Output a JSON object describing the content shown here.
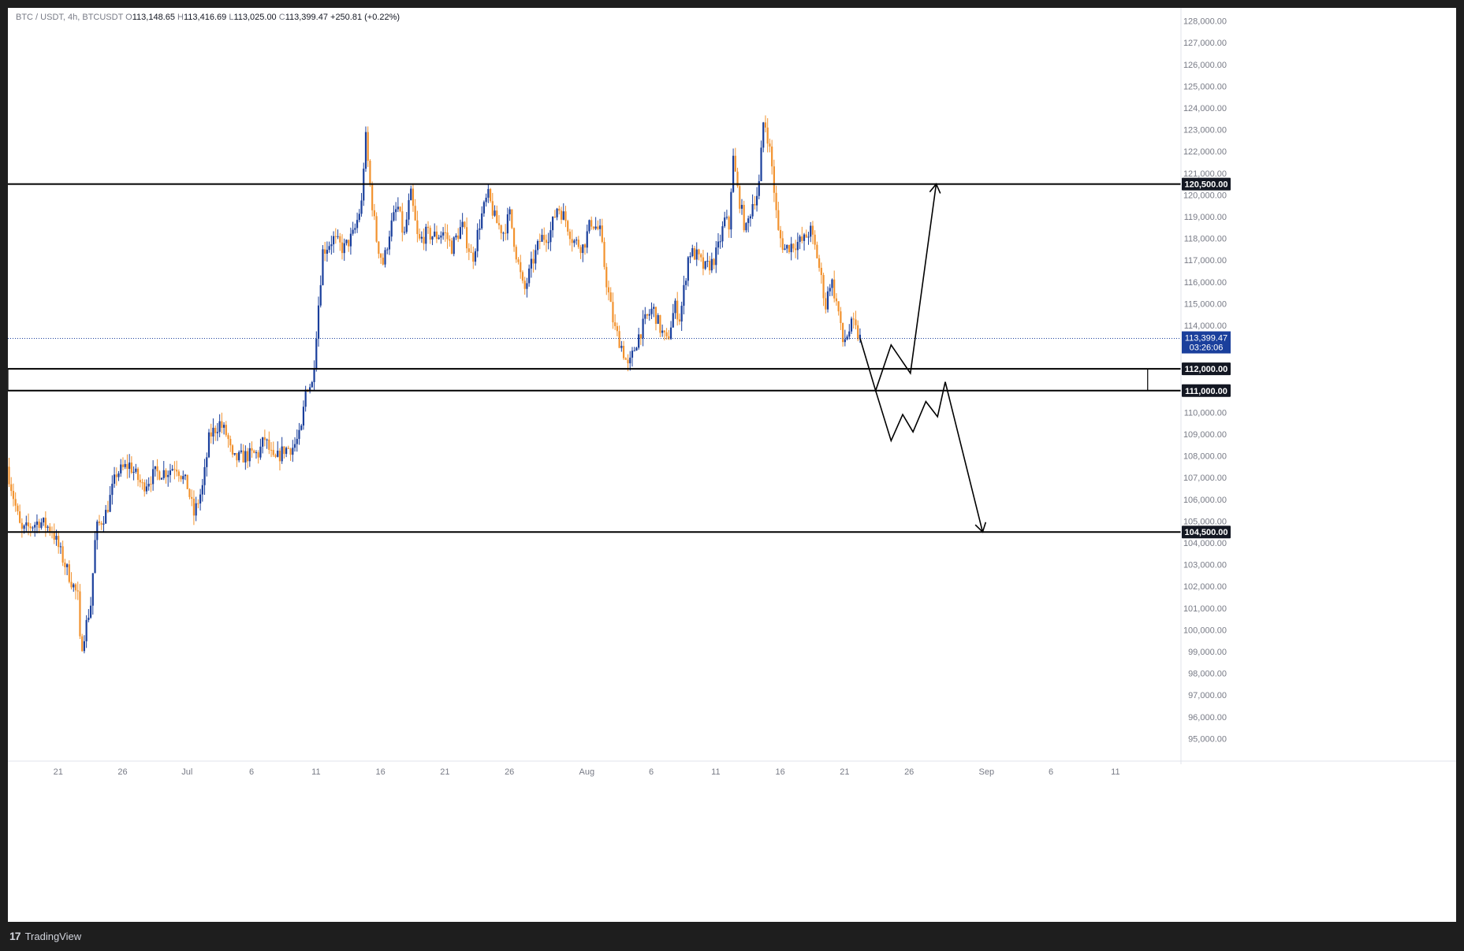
{
  "legend": {
    "symbol": "BTC / USDT, 4h, BTCUSDT",
    "open_label": "O",
    "open": "113,148.65",
    "high_label": "H",
    "high": "113,416.69",
    "low_label": "L",
    "low": "113,025.00",
    "close_label": "C",
    "close": "113,399.47",
    "change": "+250.81 (+0.22%)"
  },
  "colors": {
    "up": "#1a3f9c",
    "down": "#f2922e",
    "line": "#000000",
    "price_badge": "#1a3f9c",
    "grid_text": "#787b86"
  },
  "footer": {
    "brand_logo": "17",
    "brand": "TradingView"
  },
  "chart_data": {
    "type": "candlestick",
    "title": "",
    "xlabel": "",
    "ylabel": "",
    "ylim": [
      94000,
      128600
    ],
    "y_ticks": [
      95000,
      96000,
      97000,
      98000,
      99000,
      100000,
      101000,
      102000,
      103000,
      104000,
      105000,
      106000,
      107000,
      108000,
      109000,
      110000,
      111000,
      112000,
      113000,
      114000,
      115000,
      116000,
      117000,
      118000,
      119000,
      120000,
      121000,
      122000,
      123000,
      124000,
      125000,
      126000,
      127000,
      128000
    ],
    "y_tick_labels": [
      "95,000.00",
      "96,000.00",
      "97,000.00",
      "98,000.00",
      "99,000.00",
      "100,000.00",
      "101,000.00",
      "102,000.00",
      "103,000.00",
      "104,000.00",
      "105,000.00",
      "106,000.00",
      "107,000.00",
      "108,000.00",
      "109,000.00",
      "110,000.00",
      "111,000.00",
      "112,000.00",
      "113,000.00",
      "114,000.00",
      "115,000.00",
      "116,000.00",
      "117,000.00",
      "118,000.00",
      "119,000.00",
      "120,000.00",
      "121,000.00",
      "122,000.00",
      "123,000.00",
      "124,000.00",
      "125,000.00",
      "126,000.00",
      "127,000.00",
      "128,000.00"
    ],
    "x_ticks": [
      {
        "day": 21,
        "label": "21"
      },
      {
        "day": 26,
        "label": "26"
      },
      {
        "day": 31,
        "label": "Jul"
      },
      {
        "day": 36,
        "label": "6"
      },
      {
        "day": 41,
        "label": "11"
      },
      {
        "day": 46,
        "label": "16"
      },
      {
        "day": 51,
        "label": "21"
      },
      {
        "day": 56,
        "label": "26"
      },
      {
        "day": 62,
        "label": "Aug"
      },
      {
        "day": 67,
        "label": "6"
      },
      {
        "day": 72,
        "label": "11"
      },
      {
        "day": 77,
        "label": "16"
      },
      {
        "day": 82,
        "label": "21"
      },
      {
        "day": 87,
        "label": "26"
      },
      {
        "day": 93,
        "label": "Sep"
      },
      {
        "day": 98,
        "label": "6"
      },
      {
        "day": 103,
        "label": "11"
      }
    ],
    "x_range_days": [
      17.1,
      107.9
    ],
    "price_path": [
      [
        17.1,
        107500
      ],
      [
        18.2,
        104500
      ],
      [
        19.6,
        105000
      ],
      [
        20.6,
        104600
      ],
      [
        21.6,
        103000
      ],
      [
        22.6,
        101500
      ],
      [
        22.8,
        99000
      ],
      [
        23.6,
        101200
      ],
      [
        24,
        104600
      ],
      [
        24.8,
        105400
      ],
      [
        25.6,
        107200
      ],
      [
        26.6,
        107600
      ],
      [
        27.6,
        106600
      ],
      [
        28.6,
        107200
      ],
      [
        29.6,
        107300
      ],
      [
        30.2,
        107600
      ],
      [
        31.1,
        106600
      ],
      [
        31.6,
        105300
      ],
      [
        32.3,
        106600
      ],
      [
        32.8,
        108900
      ],
      [
        33.6,
        109500
      ],
      [
        34.2,
        108900
      ],
      [
        34.6,
        107800
      ],
      [
        35.6,
        108000
      ],
      [
        36.6,
        108100
      ],
      [
        37.1,
        108800
      ],
      [
        37.8,
        107700
      ],
      [
        38.6,
        108300
      ],
      [
        39.3,
        108400
      ],
      [
        39.9,
        109000
      ],
      [
        40.3,
        111200
      ],
      [
        40.8,
        111300
      ],
      [
        41.2,
        114500
      ],
      [
        41.6,
        117400
      ],
      [
        42.4,
        118000
      ],
      [
        43.2,
        117500
      ],
      [
        44,
        118200
      ],
      [
        44.6,
        119600
      ],
      [
        44.9,
        122800
      ],
      [
        45.3,
        120200
      ],
      [
        45.8,
        117800
      ],
      [
        46.3,
        116800
      ],
      [
        46.8,
        118400
      ],
      [
        47.4,
        119500
      ],
      [
        47.9,
        118000
      ],
      [
        48.4,
        120100
      ],
      [
        49,
        117800
      ],
      [
        49.6,
        118200
      ],
      [
        50.4,
        118100
      ],
      [
        51,
        118300
      ],
      [
        51.6,
        117600
      ],
      [
        52.4,
        118600
      ],
      [
        53.2,
        117000
      ],
      [
        53.8,
        118800
      ],
      [
        54.4,
        120000
      ],
      [
        55,
        118800
      ],
      [
        55.6,
        118300
      ],
      [
        56.1,
        119100
      ],
      [
        56.6,
        117300
      ],
      [
        57.2,
        115500
      ],
      [
        57.8,
        116800
      ],
      [
        58.5,
        118000
      ],
      [
        59.2,
        118200
      ],
      [
        59.8,
        119500
      ],
      [
        60.4,
        118900
      ],
      [
        61,
        117900
      ],
      [
        61.8,
        117600
      ],
      [
        62.4,
        118800
      ],
      [
        63.1,
        118300
      ],
      [
        63.6,
        116000
      ],
      [
        64.2,
        113900
      ],
      [
        64.8,
        113000
      ],
      [
        65.3,
        112000
      ],
      [
        66,
        113400
      ],
      [
        66.6,
        114200
      ],
      [
        67.2,
        114800
      ],
      [
        67.8,
        113800
      ],
      [
        68.3,
        113200
      ],
      [
        68.9,
        114900
      ],
      [
        69.3,
        114300
      ],
      [
        70,
        117400
      ],
      [
        70.6,
        117200
      ],
      [
        71.2,
        116600
      ],
      [
        71.8,
        116900
      ],
      [
        72.2,
        117400
      ],
      [
        72.8,
        118900
      ],
      [
        73.1,
        118500
      ],
      [
        73.4,
        121800
      ],
      [
        73.8,
        120100
      ],
      [
        74.4,
        118300
      ],
      [
        74.9,
        119600
      ],
      [
        75.4,
        120200
      ],
      [
        75.8,
        123600
      ],
      [
        76.1,
        122700
      ],
      [
        76.4,
        121500
      ],
      [
        76.9,
        118300
      ],
      [
        77.4,
        117500
      ],
      [
        77.9,
        117700
      ],
      [
        78.4,
        117800
      ],
      [
        78.9,
        117900
      ],
      [
        79.4,
        118400
      ],
      [
        79.9,
        117300
      ],
      [
        80.3,
        116000
      ],
      [
        80.6,
        114900
      ],
      [
        81,
        116200
      ],
      [
        81.6,
        114600
      ],
      [
        81.9,
        113200
      ],
      [
        82.3,
        113600
      ],
      [
        82.7,
        114100
      ],
      [
        83.2,
        113400
      ]
    ],
    "horizontal_levels": [
      {
        "value": 120500,
        "label": "120,500.00"
      },
      {
        "value": 112000,
        "label": "112,000.00"
      },
      {
        "value": 111000,
        "label": "111,000.00"
      },
      {
        "value": 104500,
        "label": "104,500.00"
      }
    ],
    "rectangle_zone": {
      "from_day": 17.1,
      "to_day": 105.5,
      "low": 111000,
      "high": 112000
    },
    "current_price": {
      "value": 113399.47,
      "label": "113,399.47",
      "countdown": "03:26:06"
    },
    "scenario_bull": [
      [
        83.2,
        113400
      ],
      [
        84.4,
        111000
      ],
      [
        85.6,
        113100
      ],
      [
        87.1,
        111800
      ],
      [
        89.1,
        120500
      ]
    ],
    "scenario_bear": [
      [
        84.4,
        111000
      ],
      [
        85.6,
        108700
      ],
      [
        86.5,
        109900
      ],
      [
        87.3,
        109100
      ],
      [
        88.3,
        110500
      ],
      [
        89.2,
        109800
      ],
      [
        89.8,
        111400
      ],
      [
        92.7,
        104500
      ]
    ]
  }
}
